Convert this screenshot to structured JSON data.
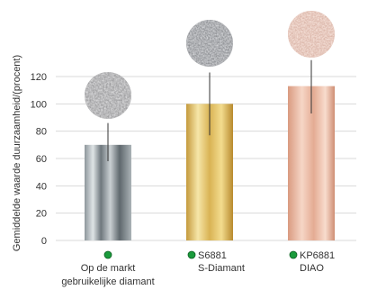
{
  "chart_data": {
    "type": "bar",
    "ylabel": "Gemiddelde waarde duurzaamheid/(procent)",
    "ylim": [
      0,
      120
    ],
    "yticks": [
      0,
      20,
      40,
      60,
      80,
      100,
      120
    ],
    "grid": true,
    "categories": [
      {
        "lines": [
          "Op de markt",
          "gebruikelijke diamant"
        ],
        "marker_color": "#1a9b3c"
      },
      {
        "lines": [
          "S6881",
          "S-Diamant"
        ],
        "marker_color": "#1a9b3c"
      },
      {
        "lines": [
          "KP6881",
          "DIAO"
        ],
        "marker_color": "#1a9b3c"
      }
    ],
    "values": [
      70,
      100,
      113
    ],
    "error_bars": [
      [
        58,
        86
      ],
      [
        77,
        123
      ],
      [
        93,
        132
      ]
    ],
    "bar_styles": [
      "silver",
      "gold",
      "rose-gold"
    ],
    "sample_images": [
      "gray-diamond-grit",
      "silver-diamond-grit",
      "pink-diamond-grit"
    ]
  }
}
